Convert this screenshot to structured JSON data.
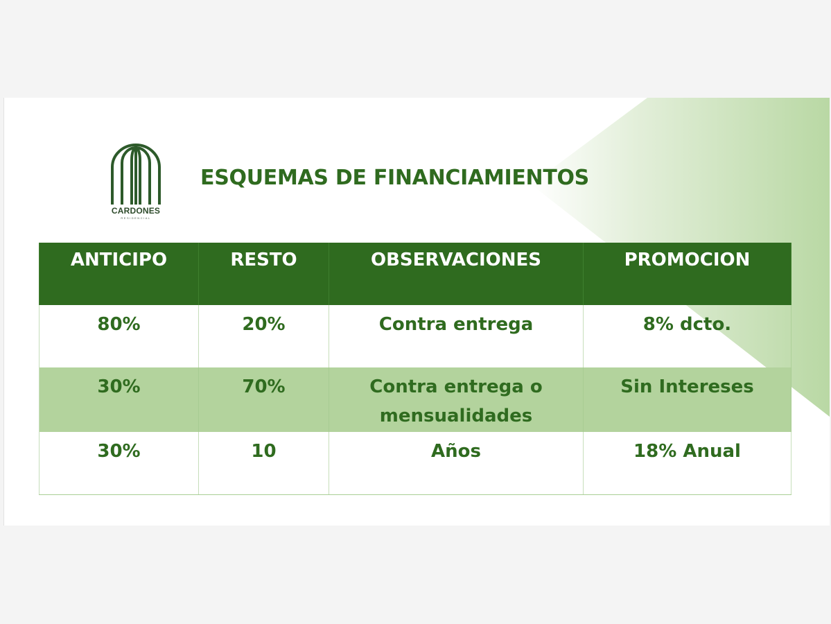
{
  "logo": {
    "name": "CARDONES",
    "subtitle": "RESIDENCIAL"
  },
  "title": "ESQUEMAS DE FINANCIAMIENTOS",
  "table": {
    "headers": [
      "ANTICIPO",
      "RESTO",
      "OBSERVACIONES",
      "PROMOCION"
    ],
    "rows": [
      [
        "80%",
        "20%",
        "Contra entrega",
        "8% dcto."
      ],
      [
        "30%",
        "70%",
        "Contra entrega o mensualidades",
        "Sin Intereses"
      ],
      [
        "30%",
        "10",
        "Años",
        "18% Anual"
      ]
    ]
  },
  "colors": {
    "primary_green": "#2f6b1f",
    "light_green": "#b3d39d",
    "logo_green": "#2d5a2a"
  }
}
